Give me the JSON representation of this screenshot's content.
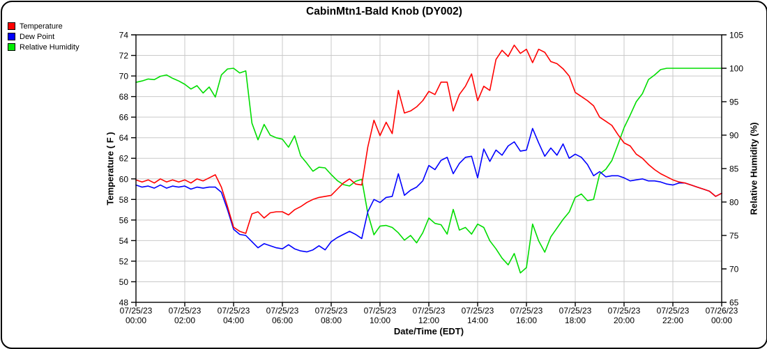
{
  "title": "CabinMtn1-Bald Knob (DY002)",
  "colors": {
    "grid": "#c9c9c9",
    "axis": "#000000",
    "background": "#ffffff",
    "temperature": "#ff0000",
    "dew_point": "#0000ff",
    "relative_humidity": "#00dd00"
  },
  "legend": {
    "items": [
      {
        "label": "Temperature",
        "color": "#ff0000"
      },
      {
        "label": "Dew Point",
        "color": "#0000ff"
      },
      {
        "label": "Relative Humidity",
        "color": "#00ee00"
      }
    ]
  },
  "chart_data": {
    "type": "line",
    "title": "CabinMtn1-Bald Knob (DY002)",
    "xlabel": "Date/Time (EDT)",
    "ylabel_left": "Temperature ( F )",
    "ylabel_right": "Relative Humidity (%)",
    "grid": true,
    "legend_position": "top-left",
    "x_start_hour": 0,
    "x_step_hours": 0.25,
    "x_range_hours": [
      0,
      24
    ],
    "x_ticks": [
      {
        "date": "07/25/23",
        "time": "00:00"
      },
      {
        "date": "07/25/23",
        "time": "02:00"
      },
      {
        "date": "07/25/23",
        "time": "04:00"
      },
      {
        "date": "07/25/23",
        "time": "06:00"
      },
      {
        "date": "07/25/23",
        "time": "08:00"
      },
      {
        "date": "07/25/23",
        "time": "10:00"
      },
      {
        "date": "07/25/23",
        "time": "12:00"
      },
      {
        "date": "07/25/23",
        "time": "14:00"
      },
      {
        "date": "07/25/23",
        "time": "16:00"
      },
      {
        "date": "07/25/23",
        "time": "18:00"
      },
      {
        "date": "07/25/23",
        "time": "20:00"
      },
      {
        "date": "07/25/23",
        "time": "22:00"
      },
      {
        "date": "07/26/23",
        "time": "00:00"
      }
    ],
    "left_axis": {
      "min": 48,
      "max": 74,
      "tick_step": 2
    },
    "right_axis": {
      "min": 65,
      "max": 105,
      "tick_step": 5
    },
    "series": [
      {
        "name": "Temperature",
        "axis": "left",
        "color": "#ff0000",
        "values": [
          59.9,
          59.7,
          59.9,
          59.6,
          60.0,
          59.7,
          59.9,
          59.7,
          59.9,
          59.6,
          60.0,
          59.8,
          60.1,
          60.4,
          59.2,
          57.3,
          55.3,
          54.9,
          54.7,
          56.6,
          56.8,
          56.2,
          56.7,
          56.8,
          56.8,
          56.5,
          57.0,
          57.3,
          57.7,
          58.0,
          58.2,
          58.3,
          58.4,
          59.0,
          59.6,
          60.0,
          59.5,
          59.4,
          63.1,
          65.7,
          64.2,
          65.5,
          64.4,
          68.6,
          66.4,
          66.6,
          67.0,
          67.6,
          68.5,
          68.2,
          69.4,
          69.4,
          66.6,
          68.2,
          69.0,
          70.2,
          67.6,
          69.0,
          68.6,
          71.6,
          72.5,
          71.9,
          73.0,
          72.2,
          72.6,
          71.3,
          72.6,
          72.3,
          71.4,
          71.2,
          70.7,
          70.0,
          68.4,
          68.0,
          67.6,
          67.1,
          66.0,
          65.6,
          65.2,
          64.3,
          63.5,
          63.2,
          62.4,
          62.0,
          61.4,
          60.9,
          60.5,
          60.2,
          59.9,
          59.7,
          59.6,
          59.4,
          59.2,
          59.0,
          58.8,
          58.3,
          58.6
        ]
      },
      {
        "name": "Dew Point",
        "axis": "left",
        "color": "#0000ff",
        "values": [
          59.4,
          59.2,
          59.3,
          59.1,
          59.4,
          59.1,
          59.3,
          59.2,
          59.3,
          59.0,
          59.2,
          59.1,
          59.2,
          59.2,
          58.7,
          57.0,
          55.1,
          54.6,
          54.5,
          53.9,
          53.3,
          53.7,
          53.5,
          53.3,
          53.2,
          53.6,
          53.2,
          53.0,
          52.9,
          53.1,
          53.5,
          53.1,
          53.9,
          54.3,
          54.6,
          54.9,
          54.6,
          54.2,
          56.8,
          58.0,
          57.7,
          58.2,
          58.3,
          60.5,
          58.4,
          58.9,
          59.2,
          59.8,
          61.3,
          60.9,
          61.8,
          62.1,
          60.5,
          61.5,
          62.1,
          62.2,
          60.1,
          62.9,
          61.7,
          62.8,
          62.3,
          63.2,
          63.6,
          62.7,
          62.8,
          64.9,
          63.5,
          62.2,
          63.0,
          62.3,
          63.4,
          62.0,
          62.4,
          62.1,
          61.4,
          60.3,
          60.7,
          60.2,
          60.3,
          60.3,
          60.1,
          59.8,
          59.9,
          60.0,
          59.8,
          59.8,
          59.7,
          59.5,
          59.4,
          59.6,
          59.6,
          59.4,
          59.2,
          59.0,
          58.8,
          58.3,
          58.6
        ]
      },
      {
        "name": "Relative Humidity",
        "axis": "right",
        "color": "#00dd00",
        "values": [
          97.9,
          98.1,
          98.4,
          98.3,
          98.8,
          99.0,
          98.5,
          98.1,
          97.6,
          96.9,
          97.4,
          96.3,
          97.2,
          95.7,
          99.0,
          99.9,
          100.0,
          99.3,
          99.6,
          91.8,
          89.3,
          91.6,
          90.0,
          89.6,
          89.4,
          88.2,
          89.9,
          86.9,
          85.8,
          84.6,
          85.2,
          85.1,
          84.1,
          83.2,
          82.6,
          82.4,
          83.1,
          83.4,
          78.3,
          75.1,
          76.4,
          76.5,
          76.2,
          75.4,
          74.3,
          75.0,
          73.9,
          75.4,
          77.6,
          76.8,
          76.6,
          75.2,
          78.9,
          75.8,
          76.2,
          75.2,
          76.7,
          76.2,
          74.2,
          73.0,
          71.6,
          70.6,
          72.3,
          69.4,
          70.2,
          76.7,
          74.2,
          72.5,
          74.8,
          76.1,
          77.4,
          78.5,
          80.7,
          81.2,
          80.2,
          80.4,
          84.2,
          84.9,
          86.2,
          88.6,
          91.1,
          93.0,
          95.0,
          96.2,
          98.3,
          99.0,
          99.8,
          100.0,
          100.0,
          100.0,
          100.0,
          100.0,
          100.0,
          100.0,
          100.0,
          100.0,
          100.0
        ]
      }
    ]
  }
}
